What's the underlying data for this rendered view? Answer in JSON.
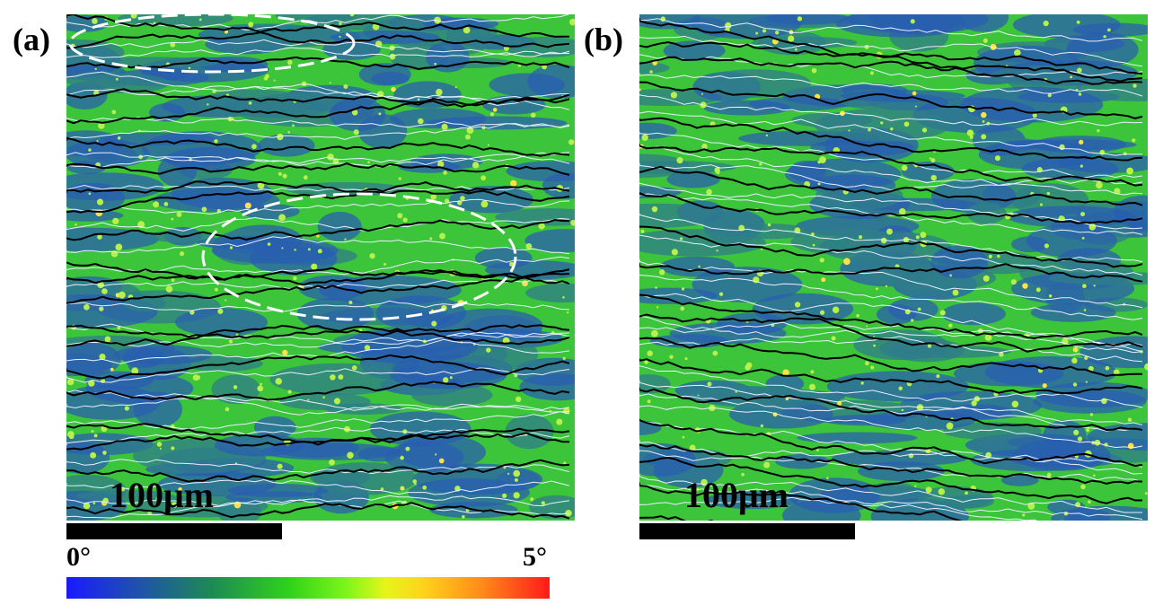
{
  "panels": {
    "a": {
      "label": "(a)",
      "scale_text": "100μm"
    },
    "b": {
      "label": "(b)",
      "scale_text": "100μm"
    }
  },
  "colorbar": {
    "min_label": "0°",
    "max_label": "5°",
    "colors": [
      "#1a1aff",
      "#1f4fb0",
      "#1d8a55",
      "#2fd21a",
      "#7ef51a",
      "#e6f51a",
      "#ffd21a",
      "#ff8a1a",
      "#ff1a1a"
    ]
  },
  "colors": {
    "background_blue": "#2a5fb0",
    "green": "#3cc43a",
    "light_green": "#b7f04a",
    "boundary_black": "#000000",
    "boundary_white": "#e8f0ff",
    "highlight_ellipse": "#ffffff"
  }
}
